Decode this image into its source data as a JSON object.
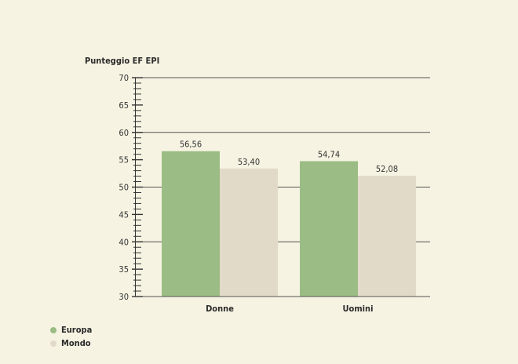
{
  "chart_data": {
    "type": "bar",
    "ylabel": "Punteggio EF EPI",
    "ylim": [
      30,
      70
    ],
    "yticks": [
      30,
      35,
      40,
      45,
      50,
      55,
      60,
      65,
      70
    ],
    "categories": [
      "Donne",
      "Uomini"
    ],
    "series": [
      {
        "name": "Europa",
        "values": [
          56.56,
          54.74
        ],
        "labels": [
          "56,56",
          "54,74"
        ],
        "color": "#9bbd85"
      },
      {
        "name": "Mondo",
        "values": [
          53.4,
          52.08
        ],
        "labels": [
          "53,40",
          "52,08"
        ],
        "color": "#e2dac8"
      }
    ],
    "grid": true,
    "legend_position": "bottom-left"
  }
}
